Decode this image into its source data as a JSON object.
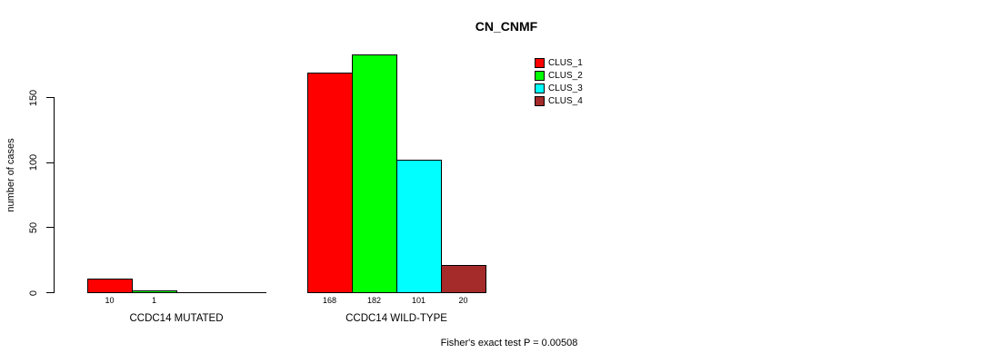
{
  "chart_data": {
    "type": "bar",
    "title": "CN_CNMF",
    "ylabel": "number of cases",
    "yticks": [
      0,
      50,
      100,
      150
    ],
    "ylim": [
      0,
      190
    ],
    "grid": false,
    "legend_position": "right",
    "categories": [
      "CCDC14 MUTATED",
      "CCDC14 WILD-TYPE"
    ],
    "series": [
      {
        "name": "CLUS_1",
        "color": "#FF0000",
        "values": [
          10,
          168
        ]
      },
      {
        "name": "CLUS_2",
        "color": "#00FF00",
        "values": [
          1,
          182
        ]
      },
      {
        "name": "CLUS_3",
        "color": "#00FFFF",
        "values": [
          0,
          101
        ]
      },
      {
        "name": "CLUS_4",
        "color": "#A52A2A",
        "values": [
          0,
          20
        ]
      }
    ],
    "bar_labels": [
      [
        "10",
        "1",
        "",
        ""
      ],
      [
        "168",
        "182",
        "101",
        "20"
      ]
    ],
    "annotation": "Fisher's exact test P = 0.00508"
  },
  "colors": {
    "foreground": "#000000",
    "background": "#FFFFFF"
  }
}
